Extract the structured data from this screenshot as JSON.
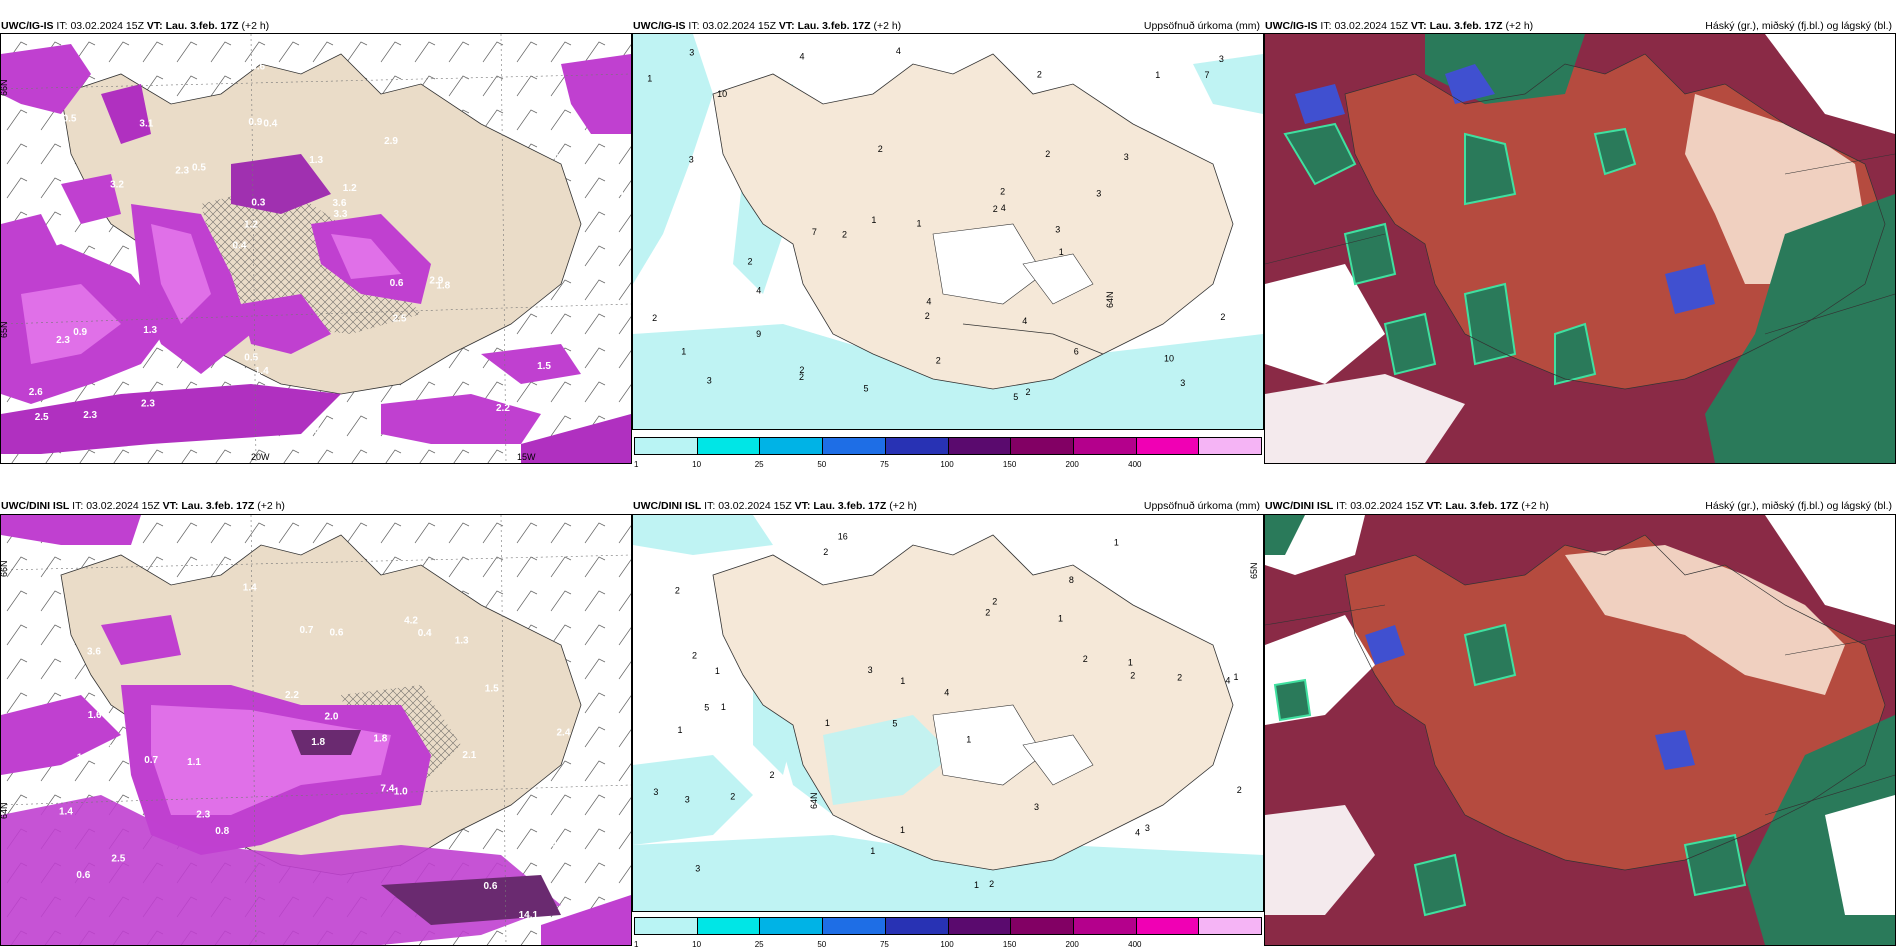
{
  "rows": [
    {
      "model": "UWC/IG-IS",
      "it_label": "IT:",
      "it_value": "03.02.2024 15Z",
      "vt_label": "VT:",
      "vt_value": "Lau. 3.feb. 17Z",
      "lead": "(+2 h)",
      "panel2_subtitle": "Uppsöfnuð úrkoma (mm)",
      "panel3_subtitle": "Háský (gr.), miðský (fj.bl.) og lágský (bl.)"
    },
    {
      "model": "UWC/DINI ISL",
      "it_label": "IT:",
      "it_value": "03.02.2024 15Z",
      "vt_label": "VT:",
      "vt_value": "Lau. 3.feb. 17Z",
      "lead": "(+2 h)",
      "panel2_subtitle": "Uppsöfnuð úrkoma (mm)",
      "panel3_subtitle": "Háský (gr.), miðský (fj.bl.) og lágský (bl.)"
    }
  ],
  "precip_legend": {
    "labels": [
      "1",
      "10",
      "25",
      "50",
      "75",
      "100",
      "150",
      "200",
      "400"
    ],
    "colors": [
      "#b9f4f4",
      "#00e6e6",
      "#00b3e6",
      "#1e6ee6",
      "#2832b4",
      "#5a0a6e",
      "#820064",
      "#b4008c",
      "#f000b4",
      "#f5b4f5"
    ]
  },
  "map_colors": {
    "land": "#f5e8d8",
    "precip_light": "#bff3f3",
    "precip_mid": "#86e8ee",
    "snow_purple": "#c040d0",
    "snow_pink": "#e070e8",
    "snow_dark": "#6a2a70",
    "cloud_high": "#7a1a3c",
    "cloud_mid": "#c85a3c",
    "cloud_low": "#2a7a5a",
    "cloud_low_edge": "#40e0a0",
    "cloud_blue": "#4050d0"
  },
  "panel1_top_labels": [
    "5.4",
    "6.2",
    "1.6",
    "0.4",
    "2.9",
    "2.3",
    "0.9",
    "1.3",
    "0.9",
    "0.5",
    "2.6",
    "1.3",
    "0.4",
    "1.2",
    "1.8",
    "0.5",
    "0.6",
    "0.8",
    "0.6",
    "0.7",
    "1.2",
    "0.5",
    "0.3",
    "3.1",
    "3.1",
    "1.3",
    "2.2",
    "1.5",
    "2.9",
    "3.4",
    "2.3",
    "3.2",
    "2.5",
    "2.3",
    "2.6",
    "3.6",
    "2.5",
    "1.4",
    "3.3",
    "2.3"
  ],
  "panel1_top_axis": [
    "66N",
    "65N",
    "20W",
    "15W"
  ],
  "panel2_top_labels": [
    "5",
    "5",
    "2",
    "6",
    "4",
    "10",
    "7",
    "3",
    "4",
    "2",
    "1",
    "2",
    "1",
    "2",
    "2",
    "2",
    "3",
    "2",
    "2",
    "1",
    "4",
    "3",
    "2",
    "3",
    "3",
    "2",
    "2",
    "4",
    "3",
    "1",
    "1",
    "2",
    "4",
    "7",
    "9",
    "3",
    "2",
    "1",
    "2",
    "10",
    "4",
    "3"
  ],
  "panel2_top_axis": [
    "64N"
  ],
  "panel1_bot_labels": [
    "14.1",
    "3.4",
    "7.4",
    "0.3",
    "0.4",
    "3.6",
    "2.5",
    "1.1",
    "1.3",
    "0.7",
    "0.4",
    "0.6",
    "0.8",
    "1.4",
    "1.8",
    "1.4",
    "2.1",
    "2.0",
    "1.7",
    "0.6",
    "0.3",
    "0.6",
    "1.5",
    "2.3",
    "2.4",
    "1.6",
    "0.7",
    "1.8",
    "2.2",
    "1.4",
    "1.0",
    "1.2",
    "2.3",
    "4.2"
  ],
  "panel1_bot_axis": [
    "66N",
    "64N"
  ],
  "panel2_bot_labels": [
    "16",
    "8",
    "4",
    "5",
    "1",
    "1",
    "2",
    "1",
    "1",
    "2",
    "4",
    "3",
    "2",
    "1",
    "1",
    "2",
    "1",
    "1",
    "2",
    "2",
    "1",
    "5",
    "1",
    "2",
    "3",
    "2",
    "1",
    "2",
    "3",
    "3",
    "4",
    "2",
    "2",
    "3",
    "3",
    "2",
    "1",
    "1"
  ],
  "panel2_bot_axis": [
    "65N",
    "64N"
  ]
}
